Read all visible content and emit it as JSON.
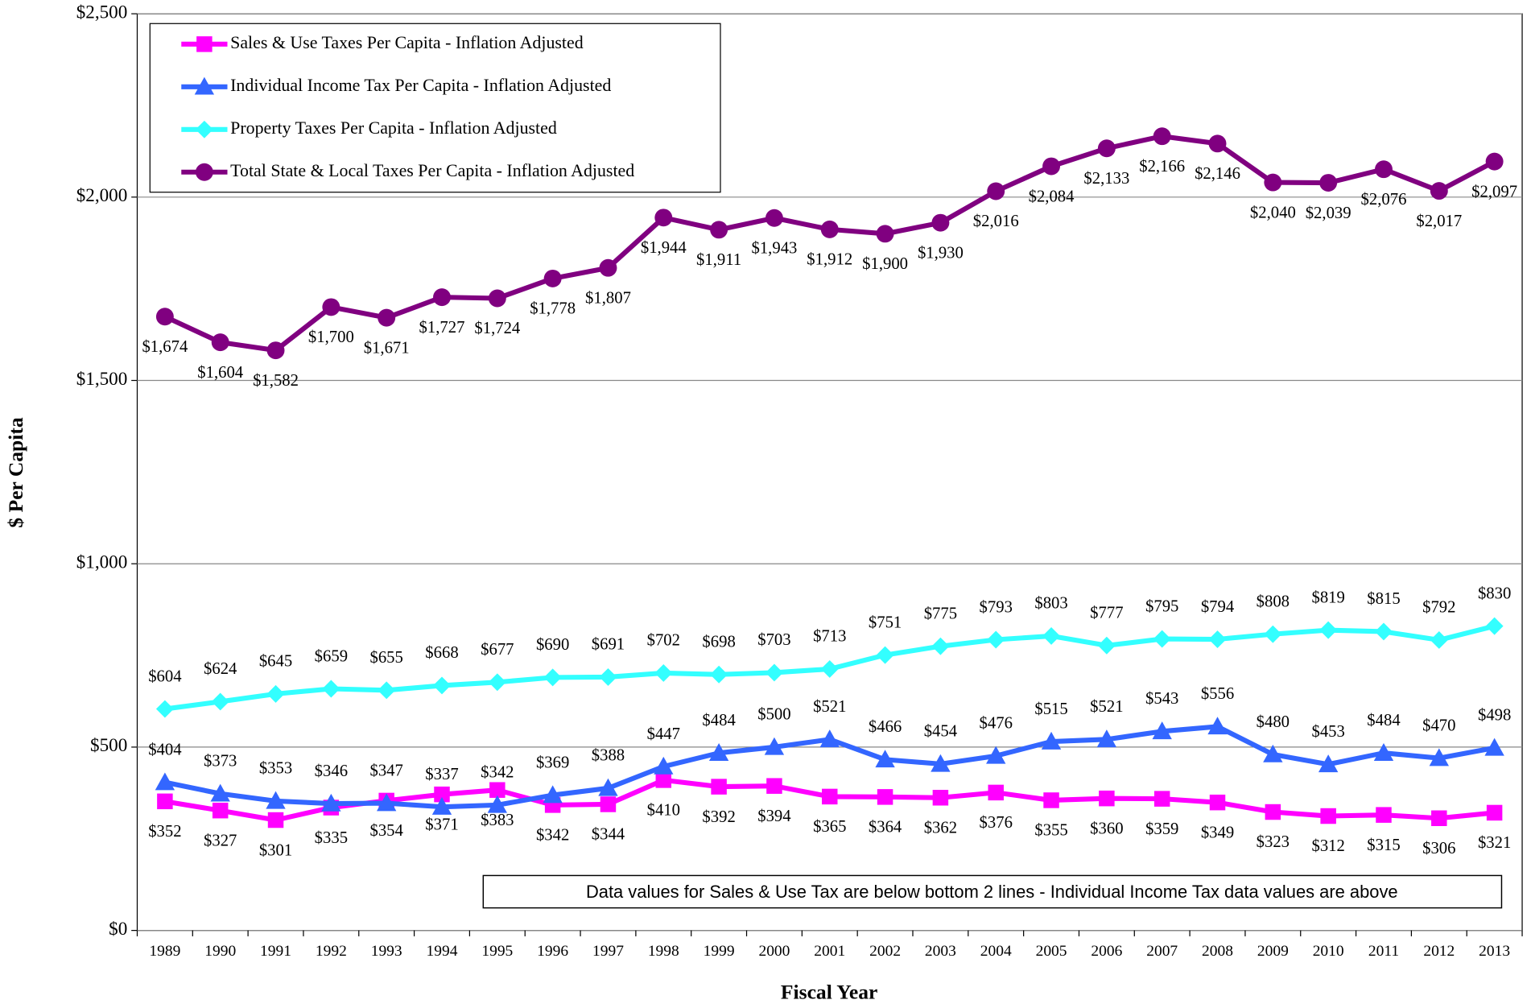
{
  "chart_data": {
    "type": "line",
    "x_label": "Fiscal Year",
    "y_label": "$ Per Capita",
    "annotation": "Data values for Sales & Use Tax are below bottom 2 lines - Individual Income Tax data values are above",
    "categories": [
      "1989",
      "1990",
      "1991",
      "1992",
      "1993",
      "1994",
      "1995",
      "1996",
      "1997",
      "1998",
      "1999",
      "2000",
      "2001",
      "2002",
      "2003",
      "2004",
      "2005",
      "2006",
      "2007",
      "2008",
      "2009",
      "2010",
      "2011",
      "2012",
      "2013"
    ],
    "ylim": [
      0,
      2500
    ],
    "yticks": [
      {
        "value": 0,
        "label": "$0"
      },
      {
        "value": 500,
        "label": "$500"
      },
      {
        "value": 1000,
        "label": "$1,000"
      },
      {
        "value": 1500,
        "label": "$1,500"
      },
      {
        "value": 2000,
        "label": "$2,000"
      },
      {
        "value": 2500,
        "label": "$2,500"
      }
    ],
    "grid": true,
    "legend": "upper left",
    "series": [
      {
        "name": "Sales & Use Taxes Per Capita - Inflation Adjusted",
        "color": "#ff00ff",
        "marker": "square",
        "label_position": "below",
        "values": [
          352,
          327,
          301,
          335,
          354,
          371,
          383,
          342,
          344,
          410,
          392,
          394,
          365,
          364,
          362,
          376,
          355,
          360,
          359,
          349,
          323,
          312,
          315,
          306,
          321
        ],
        "value_labels": [
          "$352",
          "$327",
          "$301",
          "$335",
          "$354",
          "$371",
          "$383",
          "$342",
          "$344",
          "$410",
          "$392",
          "$394",
          "$365",
          "$364",
          "$362",
          "$376",
          "$355",
          "$360",
          "$359",
          "$349",
          "$323",
          "$312",
          "$315",
          "$306",
          "$321"
        ]
      },
      {
        "name": "Individual Income Tax Per Capita - Inflation Adjusted",
        "color": "#3366ff",
        "marker": "triangle",
        "label_position": "above",
        "values": [
          404,
          373,
          353,
          346,
          347,
          337,
          342,
          369,
          388,
          447,
          484,
          500,
          521,
          466,
          454,
          476,
          515,
          521,
          543,
          556,
          480,
          453,
          484,
          470,
          498
        ],
        "value_labels": [
          "$404",
          "$373",
          "$353",
          "$346",
          "$347",
          "$337",
          "$342",
          "$369",
          "$388",
          "$447",
          "$484",
          "$500",
          "$521",
          "$466",
          "$454",
          "$476",
          "$515",
          "$521",
          "$543",
          "$556",
          "$480",
          "$453",
          "$484",
          "$470",
          "$498"
        ]
      },
      {
        "name": "Property Taxes Per Capita - Inflation Adjusted",
        "color": "#33ffff",
        "marker": "diamond",
        "label_position": "above",
        "values": [
          604,
          624,
          645,
          659,
          655,
          668,
          677,
          690,
          691,
          702,
          698,
          703,
          713,
          751,
          775,
          793,
          803,
          777,
          795,
          794,
          808,
          819,
          815,
          792,
          830
        ],
        "value_labels": [
          "$604",
          "$624",
          "$645",
          "$659",
          "$655",
          "$668",
          "$677",
          "$690",
          "$691",
          "$702",
          "$698",
          "$703",
          "$713",
          "$751",
          "$775",
          "$793",
          "$803",
          "$777",
          "$795",
          "$794",
          "$808",
          "$819",
          "$815",
          "$792",
          "$830"
        ]
      },
      {
        "name": "Total State & Local Taxes Per Capita - Inflation Adjusted",
        "color": "#800080",
        "marker": "circle",
        "label_position": "below",
        "values": [
          1674,
          1604,
          1582,
          1700,
          1671,
          1727,
          1724,
          1778,
          1807,
          1944,
          1911,
          1943,
          1912,
          1900,
          1930,
          2016,
          2084,
          2133,
          2166,
          2146,
          2040,
          2039,
          2076,
          2017,
          2097
        ],
        "value_labels": [
          "$1,674",
          "$1,604",
          "$1,582",
          "$1,700",
          "$1,671",
          "$1,727",
          "$1,724",
          "$1,778",
          "$1,807",
          "$1,944",
          "$1,911",
          "$1,943",
          "$1,912",
          "$1,900",
          "$1,930",
          "$2,016",
          "$2,084",
          "$2,133",
          "$2,166",
          "$2,146",
          "$2,040",
          "$2,039",
          "$2,076",
          "$2,017",
          "$2,097"
        ]
      }
    ]
  }
}
